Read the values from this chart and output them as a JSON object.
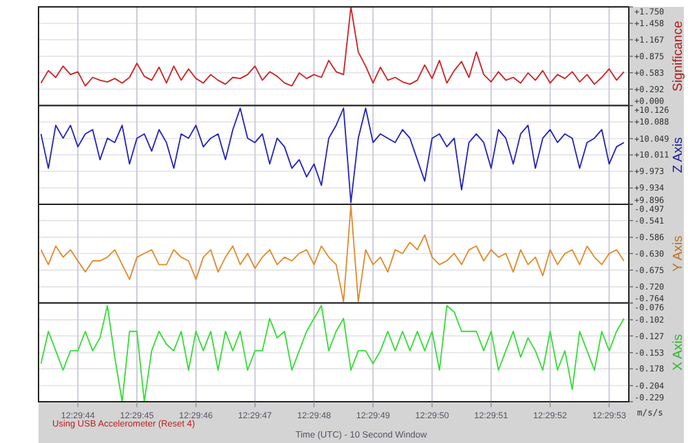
{
  "chart_data": [
    {
      "type": "line",
      "ylabel": "Significance",
      "tick_labels": "y",
      "grid": true,
      "line_style": "solid",
      "x": [
        12.4953819,
        12.4954167,
        12.4954514,
        12.4954861,
        12.4955208,
        12.4955556,
        12.4955903,
        12.495625,
        12.4956597,
        12.4956944,
        12.4957292,
        12.4957639,
        12.4957986,
        12.4958333,
        12.4958681,
        12.4959028,
        12.4959375,
        12.4959722,
        12.4960069,
        12.4960417,
        12.4960764,
        12.4961111,
        12.4961458,
        12.4961806,
        12.4962153,
        12.49625,
        12.4962847,
        12.4963194,
        12.4963542,
        12.4963889,
        12.4964236,
        12.4964583,
        12.4964931,
        12.4965278,
        12.4965625,
        12.4965972,
        12.4966319,
        12.4966667,
        12.4967014,
        12.4967361,
        12.4967708,
        12.4968056,
        12.4968403,
        12.496875,
        12.4969097,
        12.4969444,
        12.4969792,
        12.4970139,
        12.4970486,
        12.4970833,
        12.4971181,
        12.4971528,
        12.4971875,
        12.4972222,
        12.4972569,
        12.4972917,
        12.4973264,
        12.4973611,
        12.4973958,
        12.4974306,
        12.4974653,
        12.4975,
        12.4975347,
        12.4975694,
        12.4976042,
        12.4976389,
        12.4976736,
        12.4977083,
        12.4977431,
        12.4977778,
        12.4978125,
        12.4978472,
        12.4978819,
        12.4979167,
        12.4979514,
        12.4979861,
        12.4980208,
        12.4980556,
        12.4980903,
        12.498125
      ],
      "xlim": [
        12.4953704,
        12.4981481
      ],
      "xticks": [
        {
          "value": 12.4955556,
          "label": null
        },
        {
          "value": 12.4958333,
          "label": null
        },
        {
          "value": 12.4961111,
          "label": null
        },
        {
          "value": 12.4963889,
          "label": null
        },
        {
          "value": 12.4966667,
          "label": null
        },
        {
          "value": 12.4969444,
          "label": null
        },
        {
          "value": 12.4972222,
          "label": null
        },
        {
          "value": 12.4975,
          "label": null
        },
        {
          "value": 12.4977778,
          "label": null
        },
        {
          "value": 12.4980556,
          "label": null
        }
      ],
      "ylim": [
        0,
        1.75
      ],
      "yticks": [
        {
          "value": 0,
          "label": "+0.000"
        },
        {
          "value": 0.292,
          "label": "+0.292"
        },
        {
          "value": 0.583,
          "label": "+0.583"
        },
        {
          "value": 0.875,
          "label": "+0.875"
        },
        {
          "value": 1.167,
          "label": "+1.167"
        },
        {
          "value": 1.458,
          "label": "+1.458"
        },
        {
          "value": 1.75,
          "label": "+1.750"
        }
      ],
      "series": [
        {
          "color": "#cc2222",
          "values": [
            0.4,
            0.62,
            0.5,
            0.7,
            0.55,
            0.6,
            0.35,
            0.5,
            0.45,
            0.42,
            0.48,
            0.4,
            0.5,
            0.75,
            0.52,
            0.45,
            0.68,
            0.4,
            0.7,
            0.45,
            0.65,
            0.48,
            0.4,
            0.55,
            0.45,
            0.38,
            0.5,
            0.48,
            0.55,
            0.7,
            0.45,
            0.6,
            0.52,
            0.4,
            0.35,
            0.58,
            0.48,
            0.55,
            0.5,
            0.8,
            0.6,
            0.55,
            1.75,
            0.95,
            0.7,
            0.4,
            0.68,
            0.45,
            0.5,
            0.42,
            0.38,
            0.45,
            0.72,
            0.48,
            0.8,
            0.4,
            0.62,
            0.78,
            0.5,
            0.95,
            0.55,
            0.42,
            0.6,
            0.45,
            0.5,
            0.4,
            0.58,
            0.45,
            0.62,
            0.4,
            0.55,
            0.48,
            0.6,
            0.42,
            0.55,
            0.38,
            0.5,
            0.65,
            0.45,
            0.6
          ]
        }
      ]
    },
    {
      "type": "line",
      "ylabel": "Z Axis",
      "tick_labels": "y",
      "grid": true,
      "line_style": "solid",
      "x": [
        12.4953819,
        12.4954167,
        12.4954514,
        12.4954861,
        12.4955208,
        12.4955556,
        12.4955903,
        12.495625,
        12.4956597,
        12.4956944,
        12.4957292,
        12.4957639,
        12.4957986,
        12.4958333,
        12.4958681,
        12.4959028,
        12.4959375,
        12.4959722,
        12.4960069,
        12.4960417,
        12.4960764,
        12.4961111,
        12.4961458,
        12.4961806,
        12.4962153,
        12.49625,
        12.4962847,
        12.4963194,
        12.4963542,
        12.4963889,
        12.4964236,
        12.4964583,
        12.4964931,
        12.4965278,
        12.4965625,
        12.4965972,
        12.4966319,
        12.4966667,
        12.4967014,
        12.4967361,
        12.4967708,
        12.4968056,
        12.4968403,
        12.496875,
        12.4969097,
        12.4969444,
        12.4969792,
        12.4970139,
        12.4970486,
        12.4970833,
        12.4971181,
        12.4971528,
        12.4971875,
        12.4972222,
        12.4972569,
        12.4972917,
        12.4973264,
        12.4973611,
        12.4973958,
        12.4974306,
        12.4974653,
        12.4975,
        12.4975347,
        12.4975694,
        12.4976042,
        12.4976389,
        12.4976736,
        12.4977083,
        12.4977431,
        12.4977778,
        12.4978125,
        12.4978472,
        12.4978819,
        12.4979167,
        12.4979514,
        12.4979861,
        12.4980208,
        12.4980556,
        12.4980903,
        12.498125
      ],
      "xlim": [
        12.4953704,
        12.4981481
      ],
      "xticks": [
        {
          "value": 12.4955556,
          "label": null
        },
        {
          "value": 12.4958333,
          "label": null
        },
        {
          "value": 12.4961111,
          "label": null
        },
        {
          "value": 12.4963889,
          "label": null
        },
        {
          "value": 12.4966667,
          "label": null
        },
        {
          "value": 12.4969444,
          "label": null
        },
        {
          "value": 12.4972222,
          "label": null
        },
        {
          "value": 12.4975,
          "label": null
        },
        {
          "value": 12.4977778,
          "label": null
        },
        {
          "value": 12.4980556,
          "label": null
        }
      ],
      "ylim": [
        9.896,
        10.126
      ],
      "yticks": [
        {
          "value": 9.896,
          "label": "+9.896"
        },
        {
          "value": 9.934,
          "label": "+9.934"
        },
        {
          "value": 9.973,
          "label": "+9.973"
        },
        {
          "value": 10.011,
          "label": "+10.011"
        },
        {
          "value": 10.049,
          "label": "+10.049"
        },
        {
          "value": 10.088,
          "label": "+10.088"
        },
        {
          "value": 10.126,
          "label": "+10.126"
        }
      ],
      "series": [
        {
          "color": "#2222bb",
          "values": [
            10.06,
            9.98,
            10.08,
            10.05,
            10.08,
            10.03,
            10.06,
            10.07,
            10.0,
            10.05,
            10.04,
            10.08,
            9.99,
            10.05,
            10.06,
            10.02,
            10.07,
            10.04,
            9.98,
            10.06,
            10.05,
            10.08,
            10.03,
            10.05,
            10.06,
            10.0,
            10.07,
            10.12,
            10.05,
            10.04,
            10.06,
            9.99,
            10.05,
            10.03,
            9.98,
            10.0,
            9.96,
            9.99,
            9.94,
            10.05,
            10.08,
            10.12,
            9.9,
            10.05,
            10.12,
            10.04,
            10.06,
            10.05,
            10.04,
            10.07,
            10.05,
            10.0,
            9.95,
            10.05,
            10.06,
            10.03,
            10.05,
            9.93,
            10.04,
            10.06,
            10.04,
            9.98,
            10.07,
            10.05,
            9.99,
            10.06,
            10.08,
            9.98,
            10.05,
            10.07,
            10.04,
            10.06,
            10.05,
            9.98,
            10.04,
            10.05,
            10.07,
            9.99,
            10.03,
            10.04
          ]
        }
      ]
    },
    {
      "type": "line",
      "ylabel": "Y Axis",
      "tick_labels": "y",
      "grid": true,
      "line_style": "solid",
      "x": [
        12.4953819,
        12.4954167,
        12.4954514,
        12.4954861,
        12.4955208,
        12.4955556,
        12.4955903,
        12.495625,
        12.4956597,
        12.4956944,
        12.4957292,
        12.4957639,
        12.4957986,
        12.4958333,
        12.4958681,
        12.4959028,
        12.4959375,
        12.4959722,
        12.4960069,
        12.4960417,
        12.4960764,
        12.4961111,
        12.4961458,
        12.4961806,
        12.4962153,
        12.49625,
        12.4962847,
        12.4963194,
        12.4963542,
        12.4963889,
        12.4964236,
        12.4964583,
        12.4964931,
        12.4965278,
        12.4965625,
        12.4965972,
        12.4966319,
        12.4966667,
        12.4967014,
        12.4967361,
        12.4967708,
        12.4968056,
        12.4968403,
        12.496875,
        12.4969097,
        12.4969444,
        12.4969792,
        12.4970139,
        12.4970486,
        12.4970833,
        12.4971181,
        12.4971528,
        12.4971875,
        12.4972222,
        12.4972569,
        12.4972917,
        12.4973264,
        12.4973611,
        12.4973958,
        12.4974306,
        12.4974653,
        12.4975,
        12.4975347,
        12.4975694,
        12.4976042,
        12.4976389,
        12.4976736,
        12.4977083,
        12.4977431,
        12.4977778,
        12.4978125,
        12.4978472,
        12.4978819,
        12.4979167,
        12.4979514,
        12.4979861,
        12.4980208,
        12.4980556,
        12.4980903,
        12.498125
      ],
      "xlim": [
        12.4953704,
        12.4981481
      ],
      "xticks": [
        {
          "value": 12.4955556,
          "label": null
        },
        {
          "value": 12.4958333,
          "label": null
        },
        {
          "value": 12.4961111,
          "label": null
        },
        {
          "value": 12.4963889,
          "label": null
        },
        {
          "value": 12.4966667,
          "label": null
        },
        {
          "value": 12.4969444,
          "label": null
        },
        {
          "value": 12.4972222,
          "label": null
        },
        {
          "value": 12.4975,
          "label": null
        },
        {
          "value": 12.4977778,
          "label": null
        },
        {
          "value": 12.4980556,
          "label": null
        }
      ],
      "ylim": [
        -0.764,
        -0.497
      ],
      "yticks": [
        {
          "value": -0.764,
          "label": "-0.764"
        },
        {
          "value": -0.72,
          "label": "-0.720"
        },
        {
          "value": -0.675,
          "label": "-0.675"
        },
        {
          "value": -0.63,
          "label": "-0.630"
        },
        {
          "value": -0.586,
          "label": "-0.586"
        },
        {
          "value": -0.541,
          "label": "-0.541"
        },
        {
          "value": -0.497,
          "label": "-0.497"
        }
      ],
      "series": [
        {
          "color": "#e08a2a",
          "values": [
            -0.62,
            -0.66,
            -0.61,
            -0.64,
            -0.62,
            -0.65,
            -0.68,
            -0.65,
            -0.65,
            -0.64,
            -0.62,
            -0.66,
            -0.7,
            -0.64,
            -0.63,
            -0.62,
            -0.66,
            -0.66,
            -0.62,
            -0.64,
            -0.65,
            -0.7,
            -0.64,
            -0.62,
            -0.68,
            -0.64,
            -0.61,
            -0.66,
            -0.63,
            -0.67,
            -0.64,
            -0.62,
            -0.66,
            -0.64,
            -0.65,
            -0.63,
            -0.62,
            -0.66,
            -0.61,
            -0.64,
            -0.66,
            -0.76,
            -0.5,
            -0.76,
            -0.62,
            -0.66,
            -0.64,
            -0.68,
            -0.62,
            -0.63,
            -0.6,
            -0.62,
            -0.58,
            -0.64,
            -0.66,
            -0.65,
            -0.63,
            -0.66,
            -0.62,
            -0.61,
            -0.65,
            -0.62,
            -0.64,
            -0.63,
            -0.68,
            -0.62,
            -0.66,
            -0.64,
            -0.69,
            -0.62,
            -0.66,
            -0.63,
            -0.62,
            -0.66,
            -0.61,
            -0.64,
            -0.66,
            -0.63,
            -0.62,
            -0.65
          ]
        }
      ]
    },
    {
      "type": "line",
      "ylabel": "X Axis",
      "xlabel": "Time (UTC) - 10 Second Window",
      "grid": true,
      "line_style": "solid",
      "annotations": [
        "Using USB Accelerometer (Reset 4)",
        "m/s/s"
      ],
      "x": [
        12.4953819,
        12.4954167,
        12.4954514,
        12.4954861,
        12.4955208,
        12.4955556,
        12.4955903,
        12.495625,
        12.4956597,
        12.4956944,
        12.4957292,
        12.4957639,
        12.4957986,
        12.4958333,
        12.4958681,
        12.4959028,
        12.4959375,
        12.4959722,
        12.4960069,
        12.4960417,
        12.4960764,
        12.4961111,
        12.4961458,
        12.4961806,
        12.4962153,
        12.49625,
        12.4962847,
        12.4963194,
        12.4963542,
        12.4963889,
        12.4964236,
        12.4964583,
        12.4964931,
        12.4965278,
        12.4965625,
        12.4965972,
        12.4966319,
        12.4966667,
        12.4967014,
        12.4967361,
        12.4967708,
        12.4968056,
        12.4968403,
        12.496875,
        12.4969097,
        12.4969444,
        12.4969792,
        12.4970139,
        12.4970486,
        12.4970833,
        12.4971181,
        12.4971528,
        12.4971875,
        12.4972222,
        12.4972569,
        12.4972917,
        12.4973264,
        12.4973611,
        12.4973958,
        12.4974306,
        12.4974653,
        12.4975,
        12.4975347,
        12.4975694,
        12.4976042,
        12.4976389,
        12.4976736,
        12.4977083,
        12.4977431,
        12.4977778,
        12.4978125,
        12.4978472,
        12.4978819,
        12.4979167,
        12.4979514,
        12.4979861,
        12.4980208,
        12.4980556,
        12.4980903,
        12.498125
      ],
      "xlim": [
        12.4953704,
        12.4981481
      ],
      "xticks": [
        {
          "value": 12.4955556,
          "label": "12:29:44"
        },
        {
          "value": 12.4958333,
          "label": "12:29:45"
        },
        {
          "value": 12.4961111,
          "label": "12:29:46"
        },
        {
          "value": 12.4963889,
          "label": "12:29:47"
        },
        {
          "value": 12.4966667,
          "label": "12:29:48"
        },
        {
          "value": 12.4969444,
          "label": "12:29:49"
        },
        {
          "value": 12.4972222,
          "label": "12:29:50"
        },
        {
          "value": 12.4975,
          "label": "12:29:51"
        },
        {
          "value": 12.4977778,
          "label": "12:29:52"
        },
        {
          "value": 12.4980556,
          "label": "12:29:53"
        }
      ],
      "ylim": [
        -0.229,
        -0.076
      ],
      "yticks": [
        {
          "value": -0.229,
          "label": "-0.229"
        },
        {
          "value": -0.204,
          "label": "-0.204"
        },
        {
          "value": -0.178,
          "label": "-0.178"
        },
        {
          "value": -0.153,
          "label": "-0.153"
        },
        {
          "value": -0.127,
          "label": "-0.127"
        },
        {
          "value": -0.102,
          "label": "-0.102"
        },
        {
          "value": -0.076,
          "label": "-0.076"
        }
      ],
      "series": [
        {
          "color": "#33dd33",
          "values": [
            -0.17,
            -0.12,
            -0.15,
            -0.18,
            -0.15,
            -0.15,
            -0.12,
            -0.15,
            -0.13,
            -0.08,
            -0.16,
            -0.229,
            -0.12,
            -0.12,
            -0.229,
            -0.15,
            -0.12,
            -0.14,
            -0.15,
            -0.12,
            -0.18,
            -0.12,
            -0.15,
            -0.12,
            -0.18,
            -0.12,
            -0.15,
            -0.12,
            -0.18,
            -0.15,
            -0.15,
            -0.1,
            -0.13,
            -0.12,
            -0.18,
            -0.15,
            -0.12,
            -0.1,
            -0.08,
            -0.15,
            -0.12,
            -0.1,
            -0.18,
            -0.15,
            -0.15,
            -0.17,
            -0.15,
            -0.12,
            -0.15,
            -0.12,
            -0.15,
            -0.12,
            -0.15,
            -0.12,
            -0.18,
            -0.08,
            -0.09,
            -0.12,
            -0.12,
            -0.12,
            -0.15,
            -0.12,
            -0.18,
            -0.15,
            -0.12,
            -0.16,
            -0.13,
            -0.15,
            -0.18,
            -0.12,
            -0.18,
            -0.15,
            -0.21,
            -0.12,
            -0.15,
            -0.18,
            -0.12,
            -0.15,
            -0.12,
            -0.1
          ]
        }
      ]
    }
  ]
}
